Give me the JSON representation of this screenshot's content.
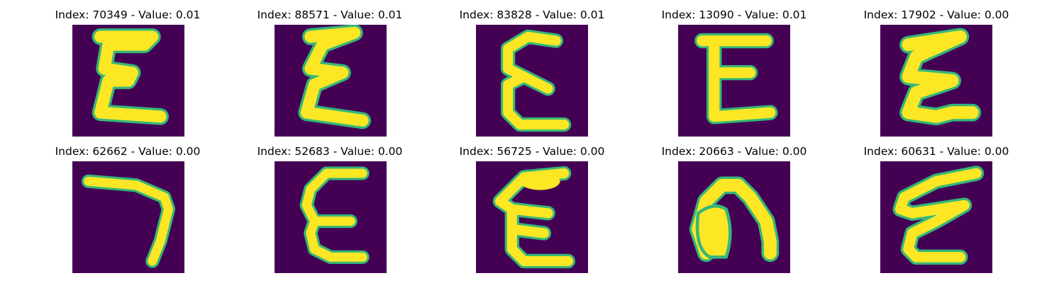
{
  "colors": {
    "background": "#440154",
    "stroke_core": "#fde725",
    "stroke_edge": "#35b779",
    "stroke_mid": "#21918c"
  },
  "panels": [
    {
      "title": "Index: 70349 - Value: 0.01",
      "glyph": "E-shape"
    },
    {
      "title": "Index: 88571 - Value: 0.01",
      "glyph": "E-shape"
    },
    {
      "title": "Index: 83828 - Value: 0.01",
      "glyph": "E-shape"
    },
    {
      "title": "Index: 13090 - Value: 0.01",
      "glyph": "E-shape"
    },
    {
      "title": "Index: 17902 - Value: 0.00",
      "glyph": "E-shape"
    },
    {
      "title": "Index: 62662 - Value: 0.00",
      "glyph": "7-shape"
    },
    {
      "title": "Index: 52683 - Value: 0.00",
      "glyph": "E-shape"
    },
    {
      "title": "Index: 56725 - Value: 0.00",
      "glyph": "E-shape"
    },
    {
      "title": "Index: 20663 - Value: 0.00",
      "glyph": "n-shape"
    },
    {
      "title": "Index: 60631 - Value: 0.00",
      "glyph": "E-shape"
    }
  ]
}
